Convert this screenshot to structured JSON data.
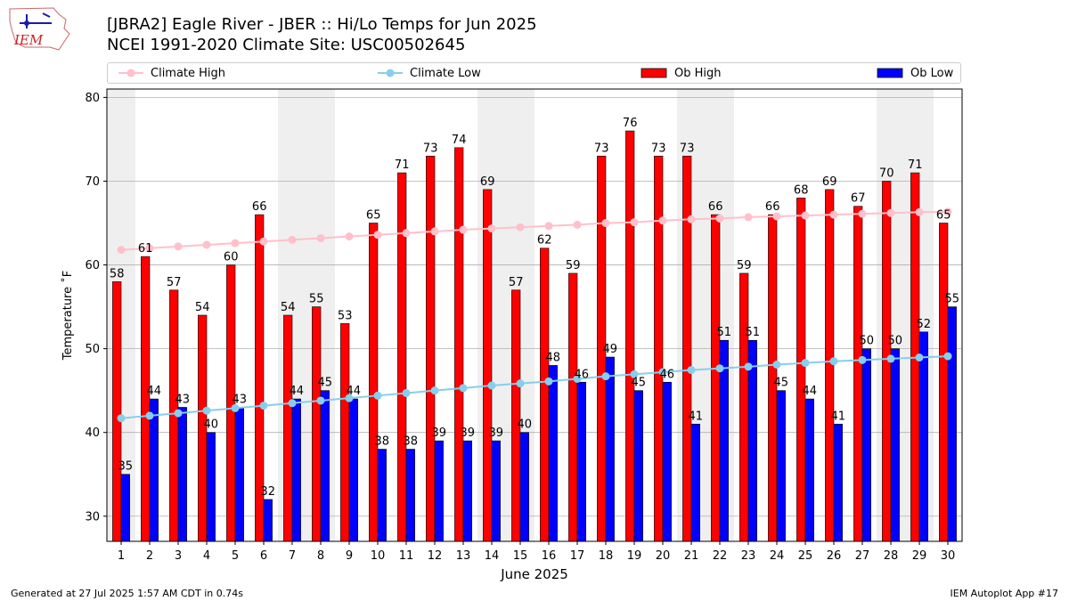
{
  "header": {
    "title_line1": "[JBRA2] Eagle River - JBER :: Hi/Lo Temps for Jun 2025",
    "title_line2": "NCEI 1991-2020 Climate Site: USC00502645",
    "logo_text": "IEM"
  },
  "footer": {
    "generated": "Generated at 27 Jul 2025 1:57 AM CDT in 0.74s",
    "app": "IEM Autoplot App #17"
  },
  "colors": {
    "ob_high": "#ff0000",
    "ob_low": "#0000ff",
    "climate_high": "#ffc0cb",
    "climate_low": "#87ceeb",
    "weekend_shade": "#efefef"
  },
  "chart_data": {
    "type": "bar",
    "xlabel": "June 2025",
    "ylabel": "Temperature ˚F",
    "ylim": [
      27,
      81
    ],
    "yticks": [
      30,
      40,
      50,
      60,
      70,
      80
    ],
    "grid": "horizontal",
    "legend_placement": "top",
    "legend": [
      "Climate High",
      "Climate Low",
      "Ob High",
      "Ob Low"
    ],
    "categories": [
      "1",
      "2",
      "3",
      "4",
      "5",
      "6",
      "7",
      "8",
      "9",
      "10",
      "11",
      "12",
      "13",
      "14",
      "15",
      "16",
      "17",
      "18",
      "19",
      "20",
      "21",
      "22",
      "23",
      "24",
      "25",
      "26",
      "27",
      "28",
      "29",
      "30"
    ],
    "shaded_days": [
      1,
      7,
      8,
      14,
      15,
      21,
      22,
      28,
      29
    ],
    "series": [
      {
        "name": "Ob High",
        "type": "bar",
        "values": [
          58,
          61,
          57,
          54,
          60,
          66,
          54,
          55,
          53,
          65,
          71,
          73,
          74,
          69,
          57,
          62,
          59,
          73,
          76,
          73,
          73,
          66,
          59,
          66,
          68,
          69,
          67,
          70,
          71,
          65
        ]
      },
      {
        "name": "Ob Low",
        "type": "bar",
        "values": [
          35,
          44,
          43,
          40,
          43,
          32,
          44,
          45,
          44,
          38,
          38,
          39,
          39,
          39,
          40,
          48,
          46,
          49,
          45,
          46,
          41,
          51,
          51,
          45,
          44,
          41,
          50,
          50,
          52,
          55
        ]
      },
      {
        "name": "Climate High",
        "type": "line",
        "values": [
          61.8,
          62.0,
          62.2,
          62.4,
          62.6,
          62.8,
          63.0,
          63.2,
          63.4,
          63.6,
          63.8,
          64.0,
          64.2,
          64.35,
          64.5,
          64.65,
          64.8,
          65.0,
          65.1,
          65.3,
          65.45,
          65.55,
          65.7,
          65.8,
          65.9,
          66.0,
          66.1,
          66.2,
          66.3,
          66.35
        ]
      },
      {
        "name": "Climate Low",
        "type": "line",
        "values": [
          41.7,
          42.0,
          42.3,
          42.6,
          42.9,
          43.2,
          43.5,
          43.8,
          44.1,
          44.4,
          44.7,
          45.0,
          45.3,
          45.6,
          45.85,
          46.1,
          46.4,
          46.7,
          46.95,
          47.2,
          47.45,
          47.65,
          47.85,
          48.1,
          48.3,
          48.5,
          48.65,
          48.8,
          48.95,
          49.1
        ]
      }
    ]
  }
}
